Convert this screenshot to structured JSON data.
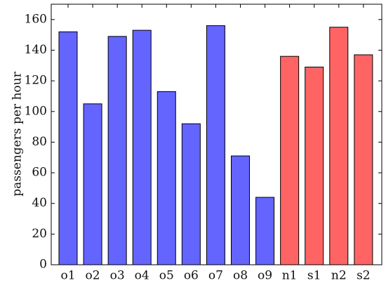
{
  "chart_data": {
    "type": "bar",
    "categories": [
      "o1",
      "o2",
      "o3",
      "o4",
      "o5",
      "o6",
      "o7",
      "o8",
      "o9",
      "n1",
      "s1",
      "n2",
      "s2"
    ],
    "values": [
      152,
      105,
      149,
      153,
      113,
      92,
      156,
      71,
      44,
      136,
      129,
      155,
      137
    ],
    "bar_colors": [
      "#6464ff",
      "#6464ff",
      "#6464ff",
      "#6464ff",
      "#6464ff",
      "#6464ff",
      "#6464ff",
      "#6464ff",
      "#6464ff",
      "#ff6464",
      "#ff6464",
      "#ff6464",
      "#ff6464"
    ],
    "xlabel": "",
    "ylabel": "passengers per hour",
    "ylim": [
      0,
      170
    ],
    "yticks": [
      0,
      20,
      40,
      60,
      80,
      100,
      120,
      140,
      160
    ],
    "grid": false,
    "legend": "none"
  }
}
